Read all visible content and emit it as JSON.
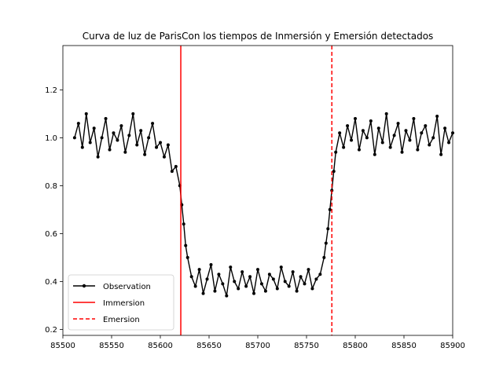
{
  "chart_data": {
    "type": "line",
    "title": "Curva de luz de ParisCon los tiempos de Inmersión y Emersión detectados",
    "xlabel": "",
    "ylabel": "",
    "xlim": [
      85500,
      85900
    ],
    "ylim": [
      0.175,
      1.385
    ],
    "xticks": [
      "85500",
      "85550",
      "85600",
      "85650",
      "85700",
      "85750",
      "85800",
      "85850",
      "85900"
    ],
    "xtick_values": [
      85500,
      85550,
      85600,
      85650,
      85700,
      85750,
      85800,
      85850,
      85900
    ],
    "yticks": [
      "0.2",
      "0.4",
      "0.6",
      "0.8",
      "1.0",
      "1.2"
    ],
    "ytick_values": [
      0.2,
      0.4,
      0.6,
      0.8,
      1.0,
      1.2
    ],
    "grid": false,
    "legend_position": "lower-left",
    "series": [
      {
        "name": "Observation",
        "style": "line-with-dots",
        "color": "#000000",
        "x": [
          85512,
          85516,
          85520,
          85524,
          85528,
          85532,
          85536,
          85540,
          85544,
          85548,
          85552,
          85556,
          85560,
          85564,
          85568,
          85572,
          85576,
          85580,
          85584,
          85588,
          85592,
          85596,
          85600,
          85604,
          85608,
          85612,
          85616,
          85620,
          85622,
          85624,
          85626,
          85628,
          85632,
          85636,
          85640,
          85644,
          85648,
          85652,
          85656,
          85660,
          85664,
          85668,
          85672,
          85676,
          85680,
          85684,
          85688,
          85692,
          85696,
          85700,
          85704,
          85708,
          85712,
          85716,
          85720,
          85724,
          85728,
          85732,
          85736,
          85740,
          85744,
          85748,
          85752,
          85756,
          85760,
          85764,
          85768,
          85770,
          85772,
          85774,
          85776,
          85778,
          85780,
          85784,
          85788,
          85792,
          85796,
          85800,
          85804,
          85808,
          85812,
          85816,
          85820,
          85824,
          85828,
          85832,
          85836,
          85840,
          85844,
          85848,
          85852,
          85856,
          85860,
          85864,
          85868,
          85872,
          85876,
          85880,
          85884,
          85888,
          85892,
          85896,
          85900
        ],
        "y": [
          1.0,
          1.06,
          0.96,
          1.1,
          0.98,
          1.04,
          0.92,
          1.0,
          1.08,
          0.95,
          1.02,
          0.99,
          1.05,
          0.94,
          1.01,
          1.1,
          0.97,
          1.03,
          0.93,
          1.0,
          1.06,
          0.96,
          0.98,
          0.92,
          0.97,
          0.86,
          0.88,
          0.8,
          0.72,
          0.64,
          0.55,
          0.5,
          0.42,
          0.38,
          0.45,
          0.35,
          0.41,
          0.47,
          0.36,
          0.43,
          0.39,
          0.34,
          0.46,
          0.4,
          0.37,
          0.44,
          0.38,
          0.42,
          0.35,
          0.45,
          0.39,
          0.36,
          0.43,
          0.41,
          0.37,
          0.46,
          0.4,
          0.38,
          0.44,
          0.36,
          0.42,
          0.39,
          0.45,
          0.37,
          0.41,
          0.43,
          0.5,
          0.56,
          0.62,
          0.7,
          0.78,
          0.86,
          0.94,
          1.02,
          0.96,
          1.05,
          0.99,
          1.08,
          0.95,
          1.03,
          1.0,
          1.07,
          0.93,
          1.04,
          0.98,
          1.1,
          0.96,
          1.01,
          1.06,
          0.94,
          1.03,
          0.99,
          1.08,
          0.95,
          1.02,
          1.05,
          0.97,
          1.0,
          1.09,
          0.93,
          1.04,
          0.98,
          1.02
        ]
      },
      {
        "name": "Immersion",
        "style": "vline-solid",
        "color": "#ff0000",
        "x": 85621
      },
      {
        "name": "Emersion",
        "style": "vline-dashed",
        "color": "#ff0000",
        "x": 85776
      }
    ]
  }
}
